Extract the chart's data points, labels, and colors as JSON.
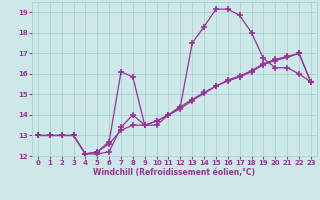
{
  "xlabel": "Windchill (Refroidissement éolien,°C)",
  "background_color": "#cce8e8",
  "grid_color": "#aacccc",
  "line_color": "#993399",
  "lines": [
    {
      "x": [
        0,
        1,
        2,
        3,
        4,
        5,
        6,
        7,
        8,
        9,
        10,
        11,
        12,
        13,
        14,
        15,
        16,
        17,
        18,
        19,
        20,
        21,
        22,
        23
      ],
      "y": [
        13,
        13,
        13,
        13,
        12.1,
        12.1,
        12.2,
        13.4,
        14.0,
        13.5,
        13.5,
        14.0,
        14.4,
        17.5,
        18.3,
        19.15,
        19.15,
        18.85,
        18.0,
        16.75,
        16.3,
        16.3,
        16.0,
        15.6
      ]
    },
    {
      "x": [
        0,
        1,
        2,
        3,
        4,
        5,
        6,
        7,
        8,
        9,
        10,
        11,
        12,
        13,
        14,
        15,
        16,
        17,
        18,
        19,
        20,
        21,
        22,
        23
      ],
      "y": [
        13,
        13,
        13,
        13,
        12.1,
        12.2,
        12.7,
        16.1,
        15.85,
        13.5,
        13.7,
        14.0,
        14.4,
        14.75,
        15.1,
        15.4,
        15.7,
        15.9,
        16.15,
        16.5,
        16.7,
        16.85,
        17.0,
        15.6
      ]
    },
    {
      "x": [
        0,
        1,
        2,
        3,
        4,
        5,
        6,
        7,
        8,
        9,
        10,
        11,
        12,
        13,
        14,
        15,
        16,
        17,
        18,
        19,
        20,
        21,
        22,
        23
      ],
      "y": [
        13,
        13,
        13,
        13,
        12.1,
        12.2,
        12.6,
        13.25,
        13.5,
        13.5,
        13.7,
        14.0,
        14.3,
        14.7,
        15.05,
        15.4,
        15.65,
        15.85,
        16.1,
        16.45,
        16.65,
        16.8,
        17.0,
        15.6
      ]
    }
  ],
  "xlim": [
    -0.5,
    23.5
  ],
  "ylim": [
    12,
    19.5
  ],
  "yticks": [
    12,
    13,
    14,
    15,
    16,
    17,
    18,
    19
  ],
  "xticks": [
    0,
    1,
    2,
    3,
    4,
    5,
    6,
    7,
    8,
    9,
    10,
    11,
    12,
    13,
    14,
    15,
    16,
    17,
    18,
    19,
    20,
    21,
    22,
    23
  ],
  "marker": "+",
  "markersize": 4,
  "markeredgewidth": 1.2,
  "linewidth": 0.9,
  "axis_fontsize": 5.5,
  "tick_fontsize": 5.0
}
